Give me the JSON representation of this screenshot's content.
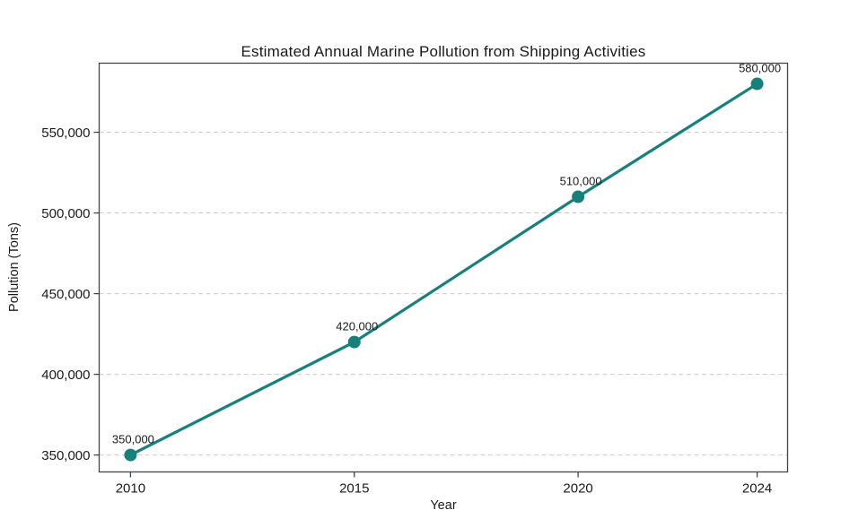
{
  "chart_data": {
    "type": "line",
    "title": "Estimated Annual Marine Pollution from Shipping Activities",
    "xlabel": "Year",
    "ylabel": "Pollution (Tons)",
    "x": [
      2010,
      2015,
      2020,
      2024
    ],
    "values": [
      350000,
      420000,
      510000,
      580000
    ],
    "point_labels": [
      "350,000",
      "420,000",
      "510,000",
      "580,000"
    ],
    "xticks": {
      "values": [
        2010,
        2015,
        2020,
        2024
      ],
      "labels": [
        "2010",
        "2015",
        "2020",
        "2024"
      ]
    },
    "yticks": {
      "values": [
        350000,
        400000,
        450000,
        500000,
        550000
      ],
      "labels": [
        "350,000",
        "400,000",
        "450,000",
        "500,000",
        "550,000"
      ]
    },
    "xlim": [
      2009.3,
      2024.68
    ],
    "ylim": [
      339500,
      592800
    ],
    "grid": "horizontal-dashed",
    "legend": "none",
    "colors": {
      "line": "#17807a",
      "marker": "#17807a",
      "grid": "#c9c9c9",
      "spine": "#444444",
      "text": "#1a1a1a"
    }
  }
}
